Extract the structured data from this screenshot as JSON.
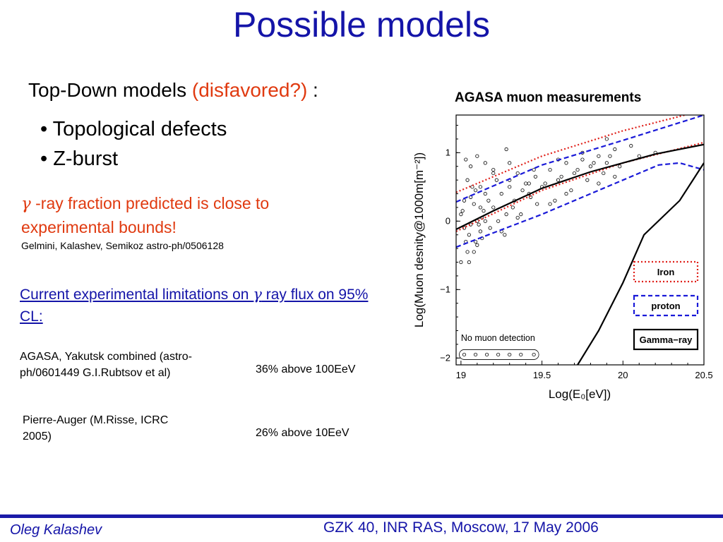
{
  "title": "Possible models",
  "top_down": {
    "prefix": "Top-Down models ",
    "highlight": "(disfavored?)",
    "suffix": " :"
  },
  "bullets": [
    "• Topological defects",
    "• Z-burst"
  ],
  "gamma_fraction": {
    "symbol": "γ",
    "text": " -ray fraction predicted is close to experimental bounds!"
  },
  "reference": "Gelmini, Kalashev, Semikoz  astro-ph/0506128",
  "current_limits": {
    "prefix": "Current experimental limitations on ",
    "symbol": "γ",
    "suffix": " ray flux on 95% CL:"
  },
  "limits": [
    {
      "source": "AGASA, Yakutsk combined (astro-ph/0601449 G.I.Rubtsov et al)",
      "value": "36% above 100EeV"
    },
    {
      "source": "Pierre-Auger (M.Risse, ICRC 2005)",
      "value": "26% above 10EeV"
    }
  ],
  "chart_data": {
    "type": "line",
    "title": "AGASA muon measurements",
    "xlabel": "Log(E₀[eV])",
    "ylabel": "Log(Muon desnity@1000m[m⁻²])",
    "xlim": [
      18.97,
      20.5
    ],
    "ylim": [
      -2.1,
      1.55
    ],
    "x_ticks": [
      19,
      19.5,
      20,
      20.5
    ],
    "x_tick_labels": [
      "19",
      "19.5",
      "20",
      "20.5"
    ],
    "y_ticks": [
      -2,
      -1,
      0,
      1
    ],
    "y_tick_labels": [
      "−2",
      "−1",
      "0",
      "1"
    ],
    "series": [
      {
        "name": "Iron",
        "style": "dotted",
        "color": "#e0201a",
        "x": [
          18.97,
          19.5,
          20.0,
          20.5
        ],
        "y": [
          0.42,
          0.95,
          1.32,
          1.62
        ]
      },
      {
        "name": "",
        "style": "dotted",
        "color": "#e0201a",
        "x": [
          18.97,
          19.5,
          20.0,
          20.5
        ],
        "y": [
          -0.15,
          0.45,
          0.85,
          1.15
        ]
      },
      {
        "name": "proton",
        "style": "dashed",
        "color": "#1a1ad8",
        "x": [
          18.97,
          19.5,
          20.0,
          20.5
        ],
        "y": [
          0.28,
          0.82,
          1.18,
          1.55
        ]
      },
      {
        "name": "",
        "style": "dashed",
        "color": "#1a1ad8",
        "x": [
          18.97,
          19.5,
          19.95,
          20.22,
          20.35,
          20.5
        ],
        "y": [
          -0.38,
          0.1,
          0.55,
          0.82,
          0.85,
          0.75
        ]
      },
      {
        "name": "",
        "style": "solid",
        "color": "#000000",
        "x": [
          18.97,
          19.2,
          19.5,
          19.8,
          20.2,
          20.5
        ],
        "y": [
          -0.12,
          0.15,
          0.48,
          0.72,
          0.98,
          1.12
        ]
      },
      {
        "name": "Gamma−ray",
        "style": "solid",
        "color": "#000000",
        "x": [
          19.72,
          19.85,
          20.0,
          20.13,
          20.35,
          20.5
        ],
        "y": [
          -2.1,
          -1.6,
          -0.9,
          -0.2,
          0.3,
          0.85
        ]
      }
    ],
    "scatter": {
      "x": [
        19.0,
        19.02,
        19.05,
        19.07,
        19.1,
        19.12,
        19.15,
        19.02,
        19.04,
        19.08,
        19.11,
        19.14,
        19.06,
        19.09,
        19.13,
        19.17,
        19.2,
        19.22,
        19.25,
        19.28,
        19.3,
        19.33,
        19.35,
        19.38,
        19.4,
        19.43,
        19.46,
        19.5,
        19.55,
        19.6,
        19.65,
        19.7,
        19.75,
        19.8,
        19.85,
        19.9,
        19.95,
        20.05,
        19.03,
        19.08,
        19.13,
        19.18,
        19.23,
        19.27,
        19.32,
        19.37,
        19.42,
        19.47,
        19.52,
        19.58,
        19.62,
        19.68,
        19.72,
        19.78,
        19.82,
        19.88,
        19.92,
        19.98,
        19.05,
        19.1,
        19.15,
        19.0,
        19.04,
        19.09,
        19.12,
        19.06,
        19.03,
        19.1,
        19.2,
        19.3,
        19.01,
        19.06,
        19.12,
        19.2,
        19.3,
        19.45,
        19.6,
        19.75,
        19.9,
        19.25,
        19.35,
        19.55,
        19.65,
        19.85,
        19.95,
        20.1,
        20.2,
        19.15,
        19.28,
        19.42
      ],
      "y": [
        0.1,
        0.3,
        -0.2,
        0.5,
        0.0,
        0.2,
        0.4,
        -0.1,
        0.6,
        0.25,
        -0.05,
        0.15,
        0.35,
        0.45,
        0.05,
        0.3,
        0.2,
        0.6,
        0.4,
        0.1,
        0.5,
        0.3,
        0.7,
        0.45,
        0.55,
        0.35,
        0.65,
        0.5,
        0.75,
        0.6,
        0.85,
        0.7,
        0.9,
        0.8,
        0.95,
        0.85,
        1.05,
        1.1,
        -0.3,
        -0.45,
        -0.25,
        -0.1,
        0.0,
        -0.2,
        0.2,
        0.1,
        0.4,
        0.25,
        0.55,
        0.3,
        0.65,
        0.45,
        0.75,
        0.6,
        0.85,
        0.7,
        0.95,
        0.8,
        -0.6,
        -0.35,
        0.0,
        -0.6,
        -0.45,
        -0.3,
        -0.15,
        0.8,
        0.9,
        0.95,
        0.75,
        0.6,
        0.15,
        -0.05,
        0.5,
        0.7,
        0.85,
        0.75,
        0.9,
        1.0,
        1.2,
        -0.15,
        0.05,
        0.25,
        0.4,
        0.55,
        0.65,
        0.95,
        1.0,
        0.85,
        1.05,
        0.55
      ]
    },
    "non_detection_x": [
      19.02,
      19.09,
      19.16,
      19.23,
      19.3,
      19.37,
      19.45
    ],
    "non_detection_label": "No muon detection",
    "legend": [
      "Iron",
      "proton",
      "Gamma−ray"
    ],
    "legend_placement": "bottom-right"
  },
  "footer": {
    "author": "Oleg Kalashev",
    "event": "GZK 40, INR RAS, Moscow, 17 May 2006"
  },
  "colors": {
    "title": "#1414a8",
    "highlight": "#e03a10",
    "footer_line": "#1a1aa8"
  }
}
